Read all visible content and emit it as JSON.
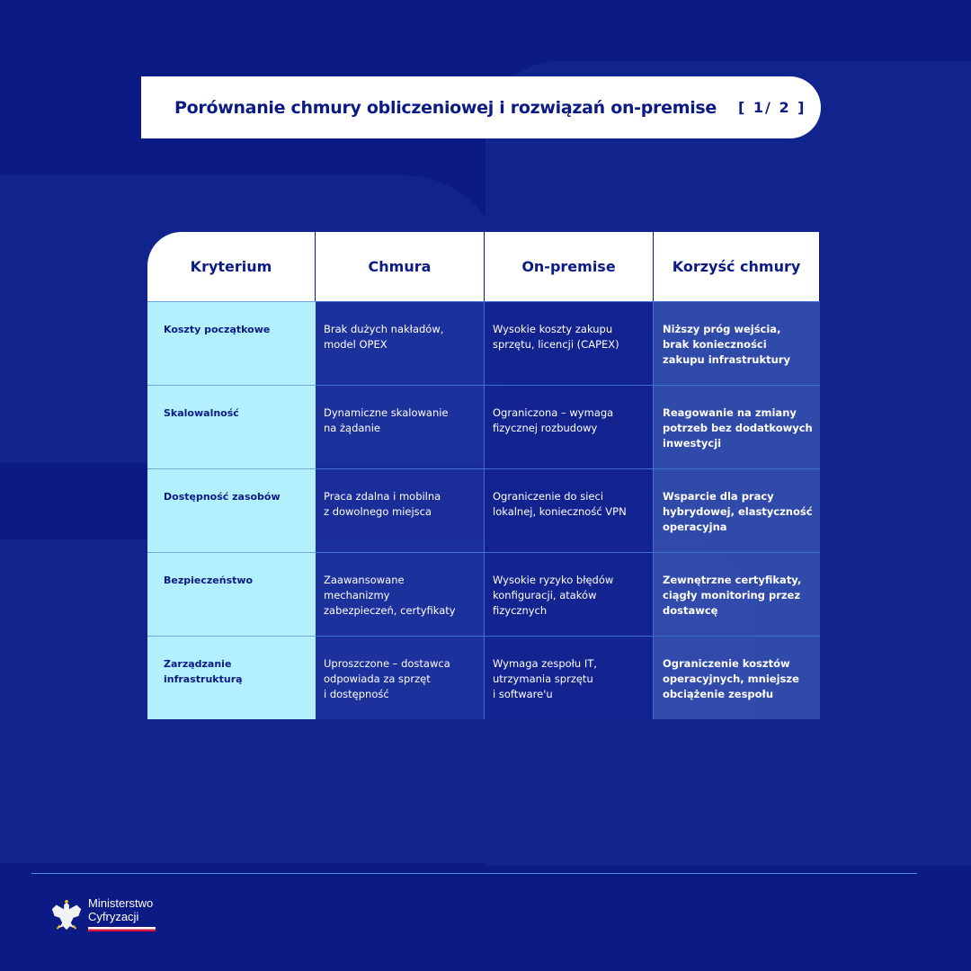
{
  "title": "Porównanie chmury obliczeniowej i rozwiązań on-premise",
  "page_indicator": "[ 1/ 2 ]",
  "table": {
    "headers": [
      "Kryterium",
      "Chmura",
      "On-premise",
      "Korzyść chmury"
    ],
    "rows": [
      [
        "Koszty początkowe",
        "Brak dużych nakładów,\nmodel OPEX",
        "Wysokie koszty zakupu\nsprzętu, licencji (CAPEX)",
        "Niższy próg wejścia,\nbrak konieczności\nzakupu infrastruktury"
      ],
      [
        "Skalowalność",
        "Dynamiczne skalowanie\nna żądanie",
        "Ograniczona – wymaga\nfizycznej rozbudowy",
        "Reagowanie na zmiany\npotrzeb bez dodatkowych\ninwestycji"
      ],
      [
        "Dostępność zasobów",
        "Praca zdalna i mobilna\nz dowolnego miejsca",
        "Ograniczenie do sieci\nlokalnej, konieczność VPN",
        "Wsparcie dla pracy\nhybrydowej, elastyczność\noperacyjna"
      ],
      [
        "Bezpieczeństwo",
        "Zaawansowane\nmechanizmy\nzabezpieczeń, certyfikaty",
        "Wysokie ryzyko błędów\nkonfiguracji, ataków\nfizycznych",
        "Zewnętrzne certyfikaty,\nciągły monitoring przez\ndostawcę"
      ],
      [
        "Zarządzanie\ninfrastrukturą",
        "Uproszczone – dostawca\nodpowiada za sprzęt\ni dostępność",
        "Wymaga zespołu IT,\nutrzymania sprzętu\ni software'u",
        "Ograniczenie kosztów\noperacyjnych, mniejsze\nobciążenie zespołu"
      ]
    ]
  },
  "footer": {
    "logo_text": "Ministerstwo Cyfryzacji",
    "logo_line1": "Ministerstwo",
    "logo_line2": "Cyfryzacji"
  },
  "colors": {
    "background": "#0b1a84",
    "criterion_column": "#b3f0fd",
    "accent_line": "#4a90e0"
  }
}
